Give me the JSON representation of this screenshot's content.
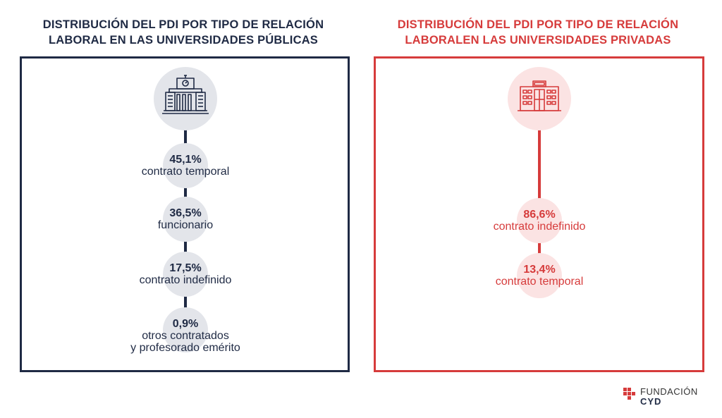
{
  "public": {
    "title_line1": "DISTRIBUCIÓN DEL PDI POR TIPO DE RELACIÓN",
    "title_line2": "LABORAL EN LAS UNIVERSIDADES PÚBLICAS",
    "color": "#1f2a44",
    "icon": "university-building-icon"
  },
  "private": {
    "title_line1": "DISTRIBUCIÓN DEL PDI POR TIPO DE RELACIÓN",
    "title_line2": "LABORALEN LAS UNIVERSIDADES PRIVADAS",
    "color": "#d63b3b",
    "icon": "modern-building-icon"
  },
  "chart_data": [
    {
      "type": "table",
      "title": "DISTRIBUCIÓN DEL PDI POR TIPO DE RELACIÓN LABORAL EN LAS UNIVERSIDADES PÚBLICAS",
      "categories": [
        "contrato temporal",
        "funcionario",
        "contrato indefinido",
        "otros contratados\ny profesorado emérito"
      ],
      "values": [
        45.1,
        36.5,
        17.5,
        0.9
      ],
      "labels": [
        "45,1%",
        "36,5%",
        "17,5%",
        "0,9%"
      ],
      "unit": "%"
    },
    {
      "type": "table",
      "title": "DISTRIBUCIÓN DEL PDI POR TIPO DE RELACIÓN LABORALEN LAS UNIVERSIDADES PRIVADAS",
      "categories": [
        "contrato indefinido",
        "contrato temporal"
      ],
      "values": [
        86.6,
        13.4
      ],
      "labels": [
        "86,6%",
        "13,4%"
      ],
      "unit": "%"
    }
  ],
  "logo": {
    "line1": "FUNDACIÓN",
    "line2": "CYD",
    "colors": [
      "#d63b3b",
      "#1f2a44"
    ]
  }
}
